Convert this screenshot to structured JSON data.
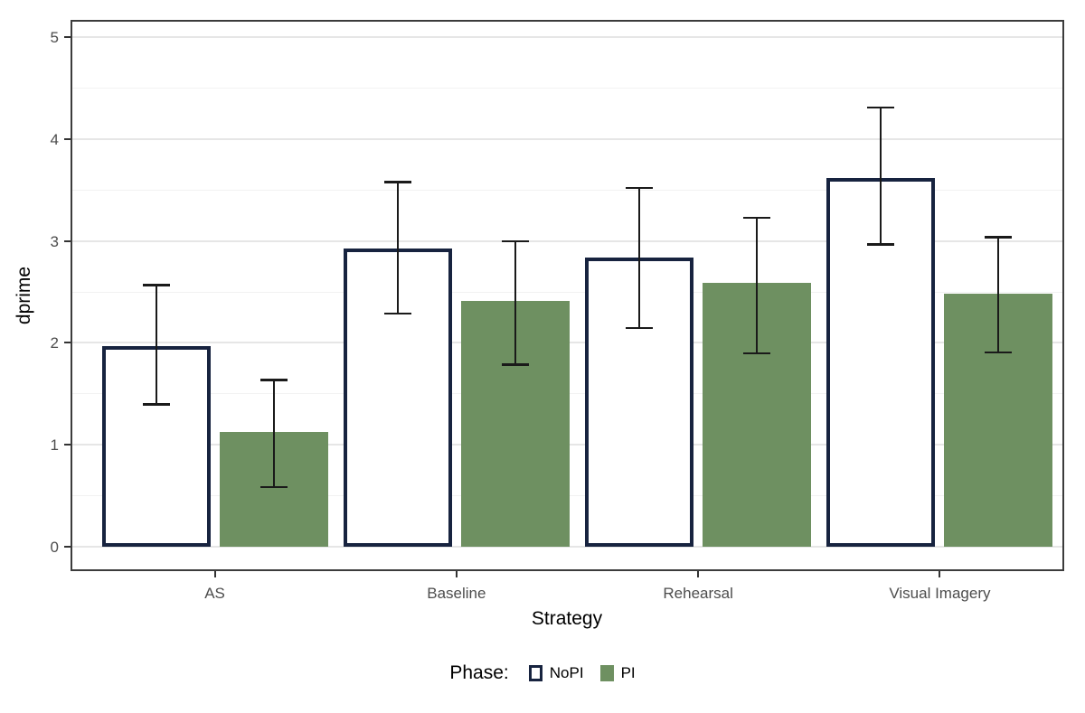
{
  "chart_data": {
    "type": "bar",
    "title": "",
    "xlabel": "Strategy",
    "ylabel": "dprime",
    "categories": [
      "AS",
      "Baseline",
      "Rehearsal",
      "Visual Imagery"
    ],
    "series": [
      {
        "name": "NoPI",
        "style": "outline",
        "fill": "#ffffff",
        "stroke": "#17233f",
        "values": [
          1.97,
          2.93,
          2.84,
          3.62
        ],
        "error_low": [
          1.4,
          2.29,
          2.15,
          2.97
        ],
        "error_high": [
          2.57,
          3.58,
          3.52,
          4.31
        ]
      },
      {
        "name": "PI",
        "style": "fill",
        "fill": "#6e9061",
        "stroke": "none",
        "values": [
          1.13,
          2.41,
          2.59,
          2.48
        ],
        "error_low": [
          0.59,
          1.79,
          1.9,
          1.91
        ],
        "error_high": [
          1.64,
          3.0,
          3.23,
          3.04
        ]
      }
    ],
    "y_ticks": [
      0,
      1,
      2,
      3,
      4,
      5
    ],
    "ylim": [
      -0.22,
      5.15
    ],
    "grid": {
      "major": true,
      "minor": true,
      "minor_step": 0.5
    },
    "legend": {
      "title": "Phase:",
      "position": "bottom",
      "entries": [
        "NoPI",
        "PI"
      ]
    },
    "colors": {
      "nopi_outline": "#17233f",
      "pi_fill": "#6e9061",
      "errorbar": "#1a1a1a",
      "panel_border": "#3c3c3c",
      "grid_major": "#e6e6e6",
      "grid_minor": "#f2f2f2",
      "tick_text": "#4d4d4d"
    }
  }
}
